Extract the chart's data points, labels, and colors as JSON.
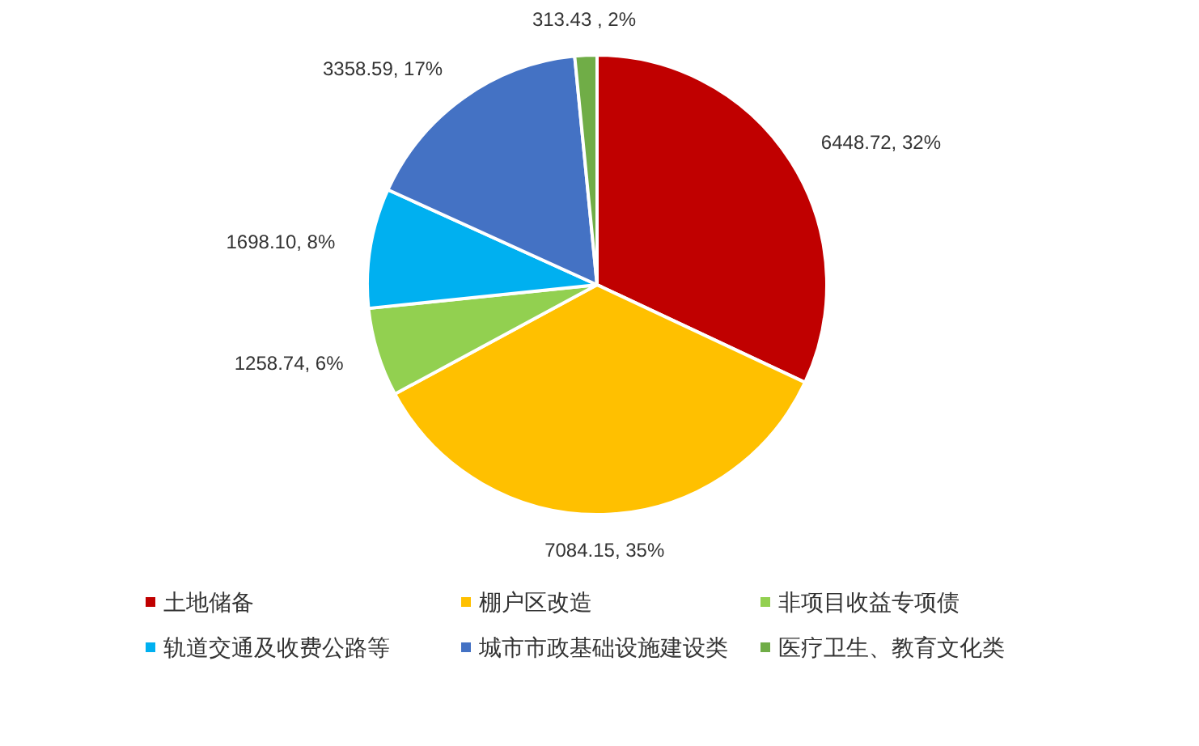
{
  "chart_data": {
    "type": "pie",
    "categories": [
      "土地储备",
      "棚户区改造",
      "非项目收益专项债",
      "轨道交通及收费公路等",
      "城市市政基础设施建设类",
      "医疗卫生、教育文化类"
    ],
    "values": [
      6448.72,
      7084.15,
      1258.74,
      1698.1,
      3358.59,
      313.43
    ],
    "colors": [
      "#c00000",
      "#ffc000",
      "#92d050",
      "#00b0f0",
      "#4472c4",
      "#70ad47"
    ],
    "value_labels": [
      "6448.72, 32%",
      "7084.15, 35%",
      "1258.74, 6%",
      "1698.10, 8%",
      "3358.59, 17%",
      "313.43 , 2%"
    ],
    "legend": "bottom"
  }
}
